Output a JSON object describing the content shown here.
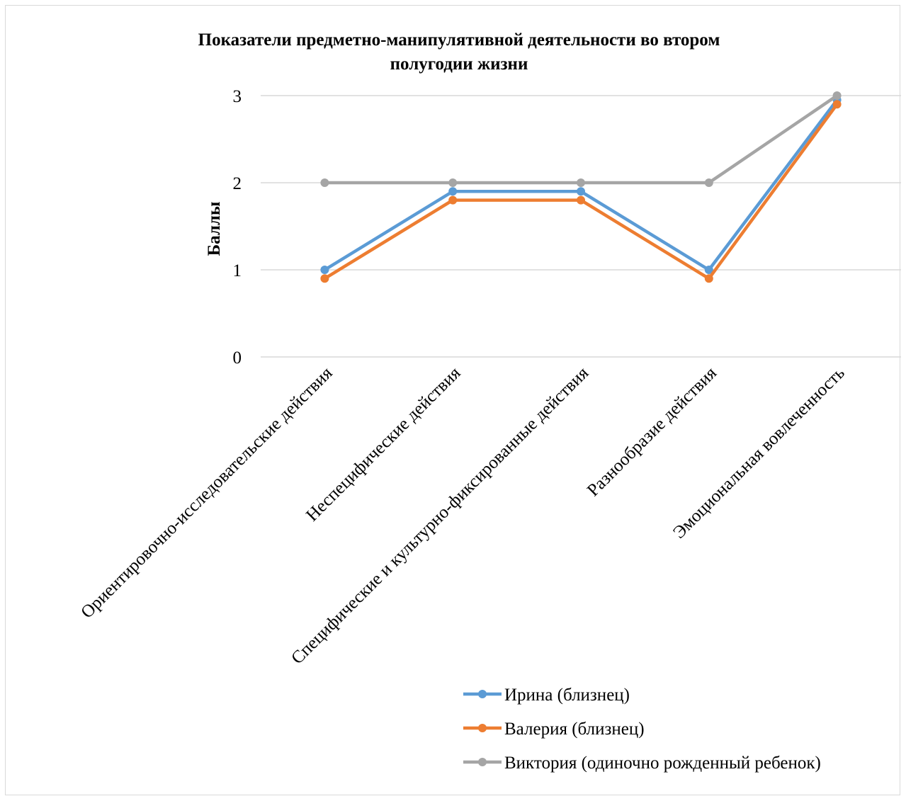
{
  "chart_data": {
    "type": "line",
    "title": "Показатели предметно-манипулятивной деятельности во втором полугодии жизни",
    "title_lines": [
      "Показатели предметно-манипулятивной деятельности во втором",
      "полугодии жизни"
    ],
    "xlabel": "",
    "ylabel": "Баллы",
    "ylim": [
      0,
      3
    ],
    "yticks": [
      "0",
      "1",
      "2",
      "3"
    ],
    "grid": true,
    "legend_position": "bottom-right",
    "categories": [
      "Ориентировочно-исследовательские действия",
      "Неспецифические действия",
      "Специфические и культурно-фиксированные действия",
      "Разнообразие действия",
      "Эмоциональная вовлеченность"
    ],
    "series": [
      {
        "name": "Ирина (близнец)",
        "color": "#5b9bd5",
        "values": [
          1.0,
          1.9,
          1.9,
          1.0,
          2.95
        ]
      },
      {
        "name": "Валерия (близнец)",
        "color": "#ed7d31",
        "values": [
          0.9,
          1.8,
          1.8,
          0.9,
          2.9
        ]
      },
      {
        "name": "Виктория (одиночно рожденный ребенок)",
        "color": "#a5a5a5",
        "values": [
          2.0,
          2.0,
          2.0,
          2.0,
          3.0
        ]
      }
    ]
  }
}
